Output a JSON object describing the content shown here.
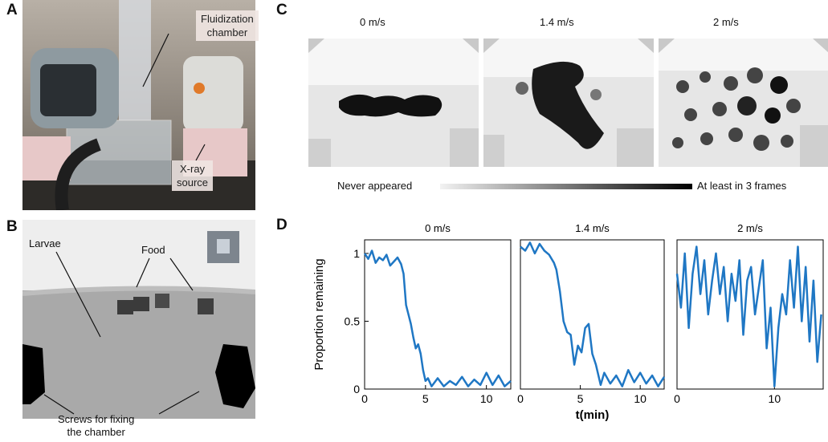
{
  "panels": {
    "A": {
      "letter": "A",
      "labels": {
        "chamber_line1": "Fluidization",
        "chamber_line2": "chamber",
        "source_line1": "X-ray",
        "source_line2": "source"
      }
    },
    "B": {
      "letter": "B",
      "labels": {
        "larvae": "Larvae",
        "food": "Food",
        "screws_line1": "Screws for fixing",
        "screws_line2": "the chamber"
      }
    },
    "C": {
      "letter": "C",
      "speeds": [
        "0 m/s",
        "1.4 m/s",
        "2 m/s"
      ],
      "scale_min_label": "Never appeared",
      "scale_max_label": "At least in 3 frames"
    },
    "D": {
      "letter": "D",
      "speeds": [
        "0 m/s",
        "1.4 m/s",
        "2 m/s"
      ]
    }
  },
  "chart_data": [
    {
      "type": "line",
      "title": "0 m/s",
      "ylabel": "Proportion remaining",
      "xlabel": "",
      "xlim": [
        0,
        12
      ],
      "ylim": [
        0,
        1.1
      ],
      "xticks": [
        0,
        5,
        10
      ],
      "yticks": [
        0,
        0.5,
        1
      ],
      "ytick_labels": [
        "0",
        "0.5",
        "1"
      ],
      "color": "#1f77c4",
      "x": [
        0,
        0.3,
        0.6,
        0.9,
        1.2,
        1.5,
        1.8,
        2.1,
        2.4,
        2.7,
        3.0,
        3.2,
        3.4,
        3.6,
        3.8,
        4.0,
        4.2,
        4.4,
        4.6,
        4.8,
        5.0,
        5.2,
        5.5,
        6.0,
        6.5,
        7.0,
        7.5,
        8.0,
        8.5,
        9.0,
        9.5,
        10.0,
        10.5,
        11.0,
        11.5,
        12.0
      ],
      "y": [
        1.0,
        0.96,
        1.02,
        0.93,
        0.97,
        0.95,
        0.99,
        0.91,
        0.94,
        0.97,
        0.92,
        0.85,
        0.62,
        0.55,
        0.48,
        0.38,
        0.3,
        0.33,
        0.26,
        0.14,
        0.06,
        0.08,
        0.02,
        0.08,
        0.02,
        0.06,
        0.03,
        0.09,
        0.02,
        0.07,
        0.03,
        0.12,
        0.03,
        0.1,
        0.02,
        0.06
      ]
    },
    {
      "type": "line",
      "title": "1.4 m/s",
      "ylabel": "",
      "xlabel": "t(min)",
      "xlim": [
        0,
        12
      ],
      "ylim": [
        0,
        1.1
      ],
      "xticks": [
        0,
        5,
        10
      ],
      "color": "#1f77c4",
      "x": [
        0,
        0.4,
        0.8,
        1.2,
        1.6,
        2.0,
        2.4,
        2.8,
        3.0,
        3.3,
        3.6,
        3.9,
        4.2,
        4.5,
        4.8,
        5.1,
        5.4,
        5.7,
        6.0,
        6.3,
        6.7,
        7.0,
        7.5,
        8.0,
        8.5,
        9.0,
        9.5,
        10.0,
        10.5,
        11.0,
        11.5,
        12.0
      ],
      "y": [
        1.05,
        1.02,
        1.08,
        1.0,
        1.07,
        1.02,
        0.99,
        0.93,
        0.88,
        0.72,
        0.5,
        0.42,
        0.4,
        0.18,
        0.32,
        0.27,
        0.45,
        0.48,
        0.26,
        0.18,
        0.03,
        0.12,
        0.04,
        0.1,
        0.02,
        0.14,
        0.05,
        0.12,
        0.04,
        0.1,
        0.02,
        0.09
      ]
    },
    {
      "type": "line",
      "title": "2 m/s",
      "ylabel": "",
      "xlabel": "",
      "xlim": [
        0,
        15
      ],
      "ylim": [
        0,
        1.1
      ],
      "xticks": [
        0,
        10
      ],
      "color": "#1f77c4",
      "x": [
        0,
        0.4,
        0.8,
        1.2,
        1.6,
        2.0,
        2.4,
        2.8,
        3.2,
        3.6,
        4.0,
        4.4,
        4.8,
        5.2,
        5.6,
        6.0,
        6.4,
        6.8,
        7.2,
        7.6,
        8.0,
        8.4,
        8.8,
        9.2,
        9.6,
        10.0,
        10.4,
        10.8,
        11.2,
        11.6,
        12.0,
        12.4,
        12.8,
        13.2,
        13.6,
        14.0,
        14.4,
        14.8
      ],
      "y": [
        0.85,
        0.6,
        1.0,
        0.45,
        0.85,
        1.05,
        0.7,
        0.95,
        0.55,
        0.8,
        1.0,
        0.7,
        0.9,
        0.5,
        0.85,
        0.65,
        0.95,
        0.4,
        0.8,
        0.9,
        0.55,
        0.75,
        0.95,
        0.3,
        0.6,
        0.02,
        0.45,
        0.7,
        0.55,
        0.95,
        0.6,
        1.05,
        0.5,
        0.9,
        0.35,
        0.8,
        0.2,
        0.55
      ]
    }
  ]
}
